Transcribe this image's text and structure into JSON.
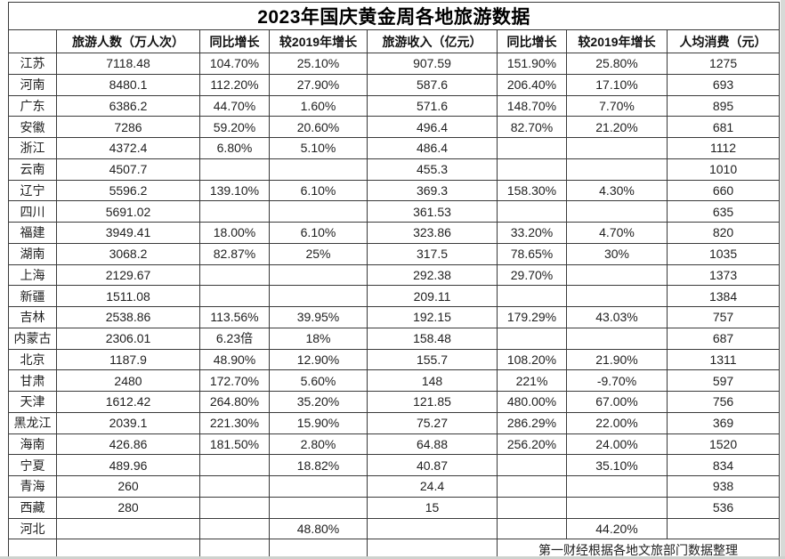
{
  "table": {
    "title": "2023年国庆黄金周各地旅游数据",
    "columns": [
      "",
      "旅游人数（万人次）",
      "同比增长",
      "较2019年增长",
      "旅游收入（亿元）",
      "同比增长",
      "较2019年增长",
      "人均消费（元）"
    ],
    "rows": [
      {
        "province": "江苏",
        "values": [
          "7118.48",
          "104.70%",
          "25.10%",
          "907.59",
          "151.90%",
          "25.80%",
          "1275"
        ]
      },
      {
        "province": "河南",
        "values": [
          "8480.1",
          "112.20%",
          "27.90%",
          "587.6",
          "206.40%",
          "17.10%",
          "693"
        ]
      },
      {
        "province": "广东",
        "values": [
          "6386.2",
          "44.70%",
          "1.60%",
          "571.6",
          "148.70%",
          "7.70%",
          "895"
        ]
      },
      {
        "province": "安徽",
        "values": [
          "7286",
          "59.20%",
          "20.60%",
          "496.4",
          "82.70%",
          "21.20%",
          "681"
        ]
      },
      {
        "province": "浙江",
        "values": [
          "4372.4",
          "6.80%",
          "5.10%",
          "486.4",
          "",
          "",
          "1112"
        ]
      },
      {
        "province": "云南",
        "values": [
          "4507.7",
          "",
          "",
          "455.3",
          "",
          "",
          "1010"
        ]
      },
      {
        "province": "辽宁",
        "values": [
          "5596.2",
          "139.10%",
          "6.10%",
          "369.3",
          "158.30%",
          "4.30%",
          "660"
        ]
      },
      {
        "province": "四川",
        "values": [
          "5691.02",
          "",
          "",
          "361.53",
          "",
          "",
          "635"
        ]
      },
      {
        "province": "福建",
        "values": [
          "3949.41",
          "18.00%",
          "6.10%",
          "323.86",
          "33.20%",
          "4.70%",
          "820"
        ]
      },
      {
        "province": "湖南",
        "values": [
          "3068.2",
          "82.87%",
          "25%",
          "317.5",
          "78.65%",
          "30%",
          "1035"
        ]
      },
      {
        "province": "上海",
        "values": [
          "2129.67",
          "",
          "",
          "292.38",
          "29.70%",
          "",
          "1373"
        ]
      },
      {
        "province": "新疆",
        "values": [
          "1511.08",
          "",
          "",
          "209.11",
          "",
          "",
          "1384"
        ]
      },
      {
        "province": "吉林",
        "values": [
          "2538.86",
          "113.56%",
          "39.95%",
          "192.15",
          "179.29%",
          "43.03%",
          "757"
        ]
      },
      {
        "province": "内蒙古",
        "values": [
          "2306.01",
          "6.23倍",
          "18%",
          "158.48",
          "",
          "",
          "687"
        ]
      },
      {
        "province": "北京",
        "values": [
          "1187.9",
          "48.90%",
          "12.90%",
          "155.7",
          "108.20%",
          "21.90%",
          "1311"
        ]
      },
      {
        "province": "甘肃",
        "values": [
          "2480",
          "172.70%",
          "5.60%",
          "148",
          "221%",
          "-9.70%",
          "597"
        ]
      },
      {
        "province": "天津",
        "values": [
          "1612.42",
          "264.80%",
          "35.20%",
          "121.85",
          "480.00%",
          "67.00%",
          "756"
        ]
      },
      {
        "province": "黑龙江",
        "values": [
          "2039.1",
          "221.30%",
          "15.90%",
          "75.27",
          "286.29%",
          "22.00%",
          "369"
        ]
      },
      {
        "province": "海南",
        "values": [
          "426.86",
          "181.50%",
          "2.80%",
          "64.88",
          "256.20%",
          "24.00%",
          "1520"
        ]
      },
      {
        "province": "宁夏",
        "values": [
          "489.96",
          "",
          "18.82%",
          "40.87",
          "",
          "35.10%",
          "834"
        ]
      },
      {
        "province": "青海",
        "values": [
          "260",
          "",
          "",
          "24.4",
          "",
          "",
          "938"
        ]
      },
      {
        "province": "西藏",
        "values": [
          "280",
          "",
          "",
          "15",
          "",
          "",
          "536"
        ]
      },
      {
        "province": "河北",
        "values": [
          "",
          "",
          "48.80%",
          "",
          "",
          "44.20%",
          ""
        ]
      }
    ],
    "footer_note": "第一财经根据各地文旅部门数据整理"
  },
  "colors": {
    "selection_green": "#538135",
    "grid_border": "#3a3a3a",
    "page_edge": "#d7dad7"
  }
}
